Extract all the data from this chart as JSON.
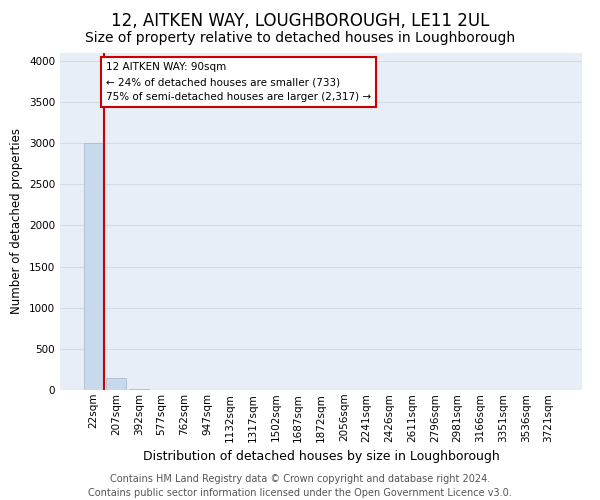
{
  "title": "12, AITKEN WAY, LOUGHBOROUGH, LE11 2UL",
  "subtitle": "Size of property relative to detached houses in Loughborough",
  "xlabel": "Distribution of detached houses by size in Loughborough",
  "ylabel": "Number of detached properties",
  "footer_line1": "Contains HM Land Registry data © Crown copyright and database right 2024.",
  "footer_line2": "Contains public sector information licensed under the Open Government Licence v3.0.",
  "bin_labels": [
    "22sqm",
    "207sqm",
    "392sqm",
    "577sqm",
    "762sqm",
    "947sqm",
    "1132sqm",
    "1317sqm",
    "1502sqm",
    "1687sqm",
    "1872sqm",
    "2056sqm",
    "2241sqm",
    "2426sqm",
    "2611sqm",
    "2796sqm",
    "2981sqm",
    "3166sqm",
    "3351sqm",
    "3536sqm",
    "3721sqm"
  ],
  "bar_values": [
    3000,
    148,
    12,
    5,
    3,
    2,
    1,
    1,
    1,
    1,
    1,
    1,
    1,
    1,
    1,
    1,
    1,
    1,
    1,
    1,
    1
  ],
  "bar_color": "#c8d9eb",
  "bar_edge_color": "#a0b8d0",
  "grid_color": "#d0dcea",
  "background_color": "#e8eef6",
  "annotation_box_text": "12 AITKEN WAY: 90sqm\n← 24% of detached houses are smaller (733)\n75% of semi-detached houses are larger (2,317) →",
  "annotation_box_color": "#cc0000",
  "property_line_x": 0.48,
  "property_line_color": "#cc0000",
  "ylim": [
    0,
    4100
  ],
  "yticks": [
    0,
    500,
    1000,
    1500,
    2000,
    2500,
    3000,
    3500,
    4000
  ],
  "title_fontsize": 12,
  "subtitle_fontsize": 10,
  "xlabel_fontsize": 9,
  "ylabel_fontsize": 8.5,
  "tick_fontsize": 7.5,
  "footer_fontsize": 7
}
